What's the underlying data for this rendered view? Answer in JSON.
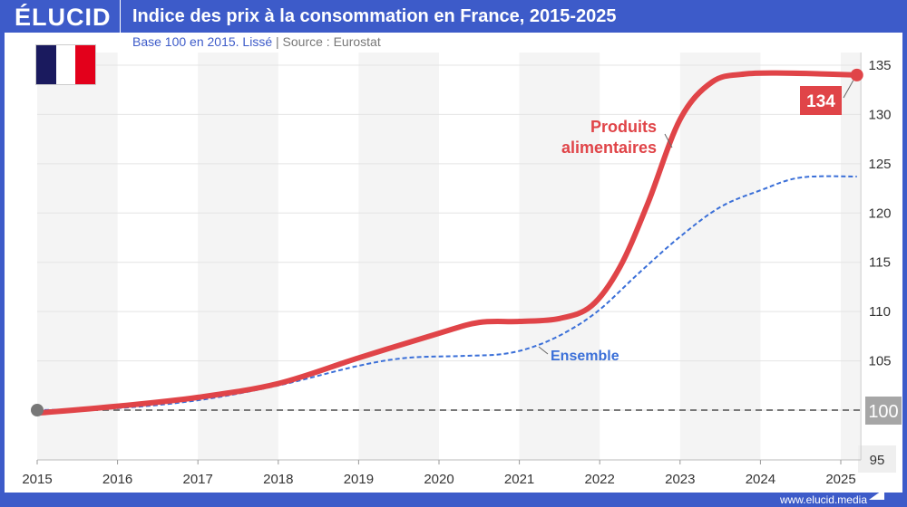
{
  "header": {
    "logo": "ÉLUCID",
    "title": "Indice des prix à la consommation en France, 2015-2025"
  },
  "subtitle": {
    "base": "Base 100 en 2015. Lissé",
    "separator": "|",
    "source": "Source : Eurostat"
  },
  "footer": {
    "url": "www.elucid.media"
  },
  "flag_colors": [
    "#1a1a5e",
    "#ffffff",
    "#e3001b"
  ],
  "chart_data": {
    "type": "line",
    "xlim": [
      2015,
      2025.25
    ],
    "ylim": [
      95,
      136
    ],
    "xticks": [
      2015,
      2016,
      2017,
      2018,
      2019,
      2020,
      2021,
      2022,
      2023,
      2024,
      2025
    ],
    "yticks": [
      95,
      100,
      105,
      110,
      115,
      120,
      125,
      130,
      135
    ],
    "grid": true,
    "reference_line": {
      "value": 100,
      "label": "100"
    },
    "series": [
      {
        "name": "Produits alimentaires",
        "color": "#e04448",
        "end_label": "134",
        "x": [
          2015,
          2016,
          2017,
          2018,
          2019,
          2020,
          2020.5,
          2021,
          2021.5,
          2021.9,
          2022.25,
          2022.6,
          2023,
          2023.4,
          2023.8,
          2024.3,
          2024.8,
          2025.2
        ],
        "y": [
          99.7,
          100.4,
          101.3,
          102.7,
          105.3,
          107.8,
          108.9,
          109.0,
          109.3,
          110.6,
          114.5,
          121,
          129.5,
          133.3,
          134.1,
          134.2,
          134.1,
          134.0
        ]
      },
      {
        "name": "Ensemble",
        "color": "#3a6fd8",
        "x": [
          2015,
          2016,
          2017,
          2018,
          2019,
          2019.6,
          2020.3,
          2020.8,
          2021.2,
          2021.6,
          2022,
          2022.5,
          2023,
          2023.5,
          2024,
          2024.5,
          2025.2
        ],
        "y": [
          100,
          100.2,
          101,
          102.5,
          104.5,
          105.3,
          105.5,
          105.7,
          106.5,
          108,
          110.2,
          114,
          117.6,
          120.6,
          122.3,
          123.6,
          123.7
        ]
      }
    ]
  }
}
